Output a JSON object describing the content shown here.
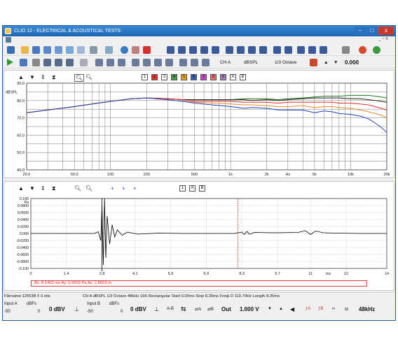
{
  "window": {
    "title": "CLIO 12 - ELECTRICAL & ACOUSTICAL TESTS",
    "min": "–",
    "max": "□",
    "close": "x"
  },
  "toolbar": {
    "ch": "CH A",
    "unit": "dBSPL",
    "smoothing": "1/3 Octave",
    "value": "0.000"
  },
  "freq": {
    "y_unit": "dBSPL",
    "x_unit": "Hz",
    "x_ticks": [
      "20.0",
      "50.0",
      "100",
      "200",
      "500",
      "1k",
      "2k",
      "Hz",
      "5k",
      "10k",
      "20k"
    ],
    "y_ticks": [
      "90.0",
      "80.0",
      "70.0",
      "60.0",
      "50.0",
      "40.0"
    ],
    "memories": [
      "1",
      "2",
      "3",
      "4",
      "5",
      "6",
      "7",
      "8",
      "9",
      "A",
      "B"
    ]
  },
  "time": {
    "y_unit": "Pa",
    "x_unit": "ms",
    "y_ticks": [
      "0.100",
      "0.0800",
      "0.0600",
      "0.0400",
      "0.0200",
      "0.000",
      "-0.0200",
      "-0.0400",
      "-0.0600",
      "-0.0800",
      "-0.100"
    ],
    "x_ticks": [
      "0",
      "1.4",
      "2.8",
      "4.1",
      "5.5",
      "6.9",
      "8.3",
      "9.7",
      "11",
      "ms",
      "12",
      "14"
    ],
    "memories": [
      "1",
      "A",
      "B"
    ],
    "cursor_readout": "Ax: 8.1403 ms   Ay: 0.0003 Pa   Az: 2.8003 m"
  },
  "status_bar": {
    "filename": "Filename:12553B 0 0.mls",
    "settings": "CH A  dBSPL  1/3 Octave  48kHz  16K  Rectangular  Start 0.00ms  Stop 8.35ms  FreqLO 119.70Hz  Length 8.35ms"
  },
  "bottom": {
    "input_a": "Input A",
    "input_b": "Input B",
    "dbfs": "dBFs",
    "scale_lo": "-50",
    "scale_hi": "0",
    "level_a": "0 dBV",
    "level_b": "0 dBV",
    "ab": "A-B",
    "out_label": "Out",
    "out_value": "1.000 V",
    "rate": "48kHz"
  },
  "chart_data": [
    {
      "type": "line",
      "title": "",
      "xlabel": "Hz",
      "ylabel": "dBSPL",
      "xscale": "log",
      "xlim": [
        20,
        20000
      ],
      "ylim": [
        40,
        90
      ],
      "grid": true,
      "x": [
        20,
        30,
        50,
        70,
        100,
        150,
        200,
        300,
        400,
        500,
        700,
        1000,
        1300,
        1500,
        2000,
        2500,
        3000,
        4000,
        5000,
        6000,
        7000,
        8000,
        10000,
        12000,
        14000,
        16000,
        18000,
        20000
      ],
      "series": [
        {
          "color": "#1a7a1a",
          "values": [
            73,
            74.5,
            76.5,
            78,
            79.5,
            81,
            81.5,
            81,
            80.5,
            80.5,
            80.5,
            80.5,
            81,
            81,
            81,
            80.5,
            81,
            81.5,
            82,
            82.5,
            82.5,
            82.5,
            83,
            83,
            83,
            82.5,
            82,
            81.5
          ]
        },
        {
          "color": "#222222",
          "values": [
            73,
            74.5,
            76.5,
            78,
            79.5,
            81,
            81.5,
            81,
            80.5,
            80.5,
            80.5,
            80.5,
            80.5,
            80,
            80.5,
            80,
            80.5,
            81,
            81.5,
            81.5,
            81.5,
            81.5,
            81,
            81,
            80.5,
            80,
            79.5,
            79
          ]
        },
        {
          "color": "#e03030",
          "values": [
            73,
            74.5,
            76.5,
            78,
            79.5,
            81,
            81.5,
            81,
            80.5,
            79.5,
            79.5,
            79.5,
            79,
            79,
            79,
            78.5,
            79,
            79,
            79,
            79,
            79,
            78.5,
            78.5,
            78,
            77.5,
            76.5,
            75.5,
            74.5
          ]
        },
        {
          "color": "#f08a2a",
          "values": [
            73,
            74.5,
            76.5,
            78,
            79.5,
            81,
            81.5,
            80.5,
            79.5,
            79,
            78.5,
            78,
            77.5,
            77.5,
            77,
            76.5,
            76.5,
            77,
            76,
            76.5,
            76.5,
            76,
            75.5,
            74.5,
            73.5,
            72.5,
            71.5,
            70
          ]
        },
        {
          "color": "#2040c0",
          "values": [
            73,
            74.5,
            76.5,
            78,
            79.5,
            81,
            81.5,
            80.5,
            79.5,
            78.5,
            77.5,
            76.5,
            75.5,
            76,
            75.5,
            74.5,
            74.5,
            74.5,
            73,
            74,
            73.5,
            72.5,
            72,
            71,
            69.5,
            67,
            64.5,
            61.5
          ]
        }
      ]
    },
    {
      "type": "line",
      "title": "",
      "xlabel": "ms",
      "ylabel": "Pa",
      "xlim": [
        0,
        14
      ],
      "ylim": [
        -0.1,
        0.1
      ],
      "grid": true,
      "cursor_x": 8.14,
      "x": [
        0,
        2.5,
        2.65,
        2.75,
        2.8,
        2.85,
        2.9,
        2.95,
        3.0,
        3.1,
        3.2,
        3.3,
        3.4,
        3.6,
        3.8,
        4.2,
        5,
        6,
        7,
        8,
        8.3,
        8.4,
        8.5,
        8.6,
        8.8,
        9.5,
        10.5,
        10.8,
        11,
        11.2,
        11.5,
        12,
        13,
        14
      ],
      "series": [
        {
          "color": "#000000",
          "values": [
            0,
            0,
            0.005,
            -0.02,
            0.08,
            -0.09,
            0.1,
            -0.07,
            0.05,
            -0.03,
            0.025,
            -0.01,
            0.01,
            -0.005,
            0.004,
            -0.002,
            0.001,
            0,
            0,
            0,
            0.004,
            -0.003,
            0.006,
            -0.002,
            0.003,
            0.002,
            0.003,
            0.008,
            -0.003,
            0.007,
            0.002,
            0.001,
            0,
            0
          ]
        }
      ]
    }
  ]
}
